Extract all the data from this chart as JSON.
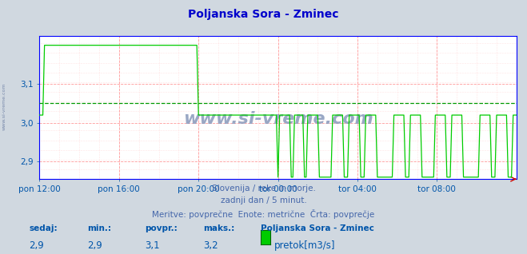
{
  "title": "Poljanska Sora - Zminec",
  "title_color": "#0000cc",
  "bg_color": "#d0d8e0",
  "plot_bg_color": "#ffffff",
  "line_color": "#00cc00",
  "avg_line_color": "#009900",
  "grid_color": "#ff9999",
  "minor_grid_color": "#ffcccc",
  "axis_color": "#0055aa",
  "border_color": "#0000ff",
  "text_color": "#4466aa",
  "ymin": 2.855,
  "ymax": 3.225,
  "yticks": [
    2.9,
    3.0,
    3.1
  ],
  "ylabel_values": [
    "2,9",
    "3,0",
    "3,1"
  ],
  "avg_value": 3.05,
  "subtitle1": "Slovenija / reke in morje.",
  "subtitle2": "zadnji dan / 5 minut.",
  "subtitle3": "Meritve: povprečne  Enote: metrične  Črta: povprečje",
  "stat_label1": "sedaj:",
  "stat_label2": "min.:",
  "stat_label3": "povpr.:",
  "stat_label4": "maks.:",
  "stat_val1": "2,9",
  "stat_val2": "2,9",
  "stat_val3": "3,1",
  "stat_val4": "3,2",
  "legend_name": "Poljanska Sora - Zminec",
  "legend_unit": "pretok[m3/s]",
  "watermark": "www.si-vreme.com",
  "watermark_color": "#8899bb",
  "xtick_labels": [
    "pon 12:00",
    "pon 16:00",
    "pon 20:00",
    "tor 00:00",
    "tor 04:00",
    "tor 08:00"
  ],
  "xtick_positions": [
    0.0,
    0.1667,
    0.3333,
    0.5,
    0.6667,
    0.8333
  ],
  "n_points": 289,
  "sidebar_text": "www.si-vreme.com"
}
